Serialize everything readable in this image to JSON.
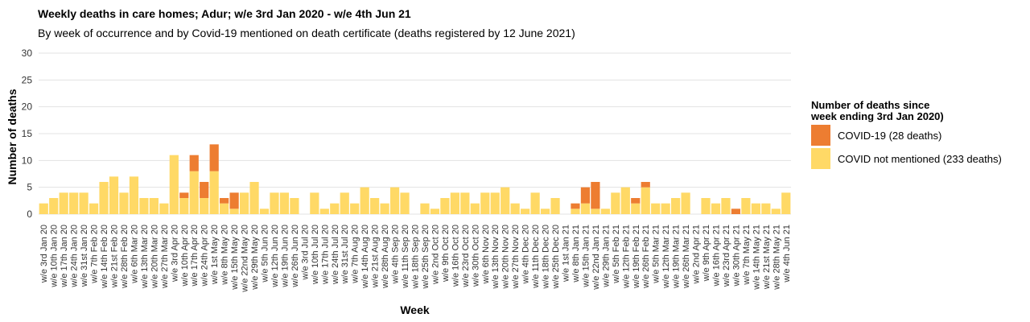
{
  "title": "Weekly deaths in care homes; Adur; w/e 3rd Jan 2020 - w/e 4th Jun 21",
  "subtitle": "By week of occurrence and by Covid-19 mentioned on death certificate (deaths registered by 12 June 2021)",
  "legend": {
    "title_line1": "Number of deaths since",
    "title_line2": "week ending 3rd Jan 2020)",
    "items": [
      {
        "label": "COVID-19 (28 deaths)",
        "color": "#ED7D31"
      },
      {
        "label": "COVID not mentioned (233 deaths)",
        "color": "#FFD966"
      }
    ]
  },
  "chart_data": {
    "type": "bar",
    "stacked": true,
    "xlabel": "Week",
    "ylabel": "Number of deaths",
    "ylim": [
      0,
      30
    ],
    "yticks": [
      0,
      5,
      10,
      15,
      20,
      25,
      30
    ],
    "grid": true,
    "legend_position": "right",
    "categories": [
      "w/e 3rd Jan 20",
      "w/e 10th Jan 20",
      "w/e 17th Jan 20",
      "w/e 24th Jan 20",
      "w/e 31st Jan 20",
      "w/e 7th Feb 20",
      "w/e 14th Feb 20",
      "w/e 21st Feb 20",
      "w/e 28th Feb 20",
      "w/e 6th Mar 20",
      "w/e 13th Mar 20",
      "w/e 20th Mar 20",
      "w/e 27th Mar 20",
      "w/e 3rd Apr 20",
      "w/e 10th Apr 20",
      "w/e 17th Apr 20",
      "w/e 24th Apr 20",
      "w/e 1st May 20",
      "w/e 8th May 20",
      "w/e 15th May 20",
      "w/e 22nd May 20",
      "w/e 29th May 20",
      "w/e 5th Jun 20",
      "w/e 12th Jun 20",
      "w/e 19th Jun 20",
      "w/e 26th Jun 20",
      "w/e 3rd Jul 20",
      "w/e 10th Jul 20",
      "w/e 17th Jul 20",
      "w/e 24th Jul 20",
      "w/e 31st Jul 20",
      "w/e 7th Aug 20",
      "w/e 14th Aug 20",
      "w/e 21st Aug 20",
      "w/e 28th Aug 20",
      "w/e 4th Sep 20",
      "w/e 11th Sep 20",
      "w/e 18th Sep 20",
      "w/e 25th Sep 20",
      "w/e 2nd Oct 20",
      "w/e 9th Oct 20",
      "w/e 16th Oct 20",
      "w/e 23rd Oct 20",
      "w/e 30th Oct 20",
      "w/e 6th Nov 20",
      "w/e 13th Nov 20",
      "w/e 20th Nov 20",
      "w/e 27th Nov 20",
      "w/e 4th Dec 20",
      "w/e 11th Dec 20",
      "w/e 18th Dec 20",
      "w/e 25th Dec 20",
      "w/e 1st Jan 21",
      "w/e 8th Jan 21",
      "w/e 15th Jan 21",
      "w/e 22nd Jan 21",
      "w/e 29th Jan 21",
      "w/e 5th Feb 21",
      "w/e 12th Feb 21",
      "w/e 19th Feb 21",
      "w/e 26th Feb 21",
      "w/e 5th Mar 21",
      "w/e 12th Mar 21",
      "w/e 19th Mar 21",
      "w/e 26th Mar 21",
      "w/e 2nd Apr 21",
      "w/e 9th Apr 21",
      "w/e 16th Apr 21",
      "w/e 23rd Apr 21",
      "w/e 30th Apr 21",
      "w/e 7th May 21",
      "w/e 14th May 21",
      "w/e 21st May 21",
      "w/e 28th May 21",
      "w/e 4th Jun 21"
    ],
    "series": [
      {
        "name": "COVID not mentioned (233 deaths)",
        "color": "#FFD966",
        "values": [
          2,
          3,
          4,
          4,
          4,
          2,
          6,
          7,
          4,
          7,
          3,
          3,
          2,
          11,
          3,
          8,
          3,
          8,
          2,
          1,
          4,
          6,
          1,
          4,
          4,
          3,
          0,
          4,
          1,
          2,
          4,
          2,
          5,
          3,
          2,
          5,
          4,
          0,
          2,
          1,
          3,
          4,
          4,
          2,
          4,
          4,
          5,
          2,
          1,
          4,
          1,
          3,
          0,
          1,
          2,
          1,
          1,
          4,
          5,
          2,
          5,
          2,
          2,
          3,
          4,
          0,
          3,
          2,
          3,
          0,
          3,
          2,
          2,
          1,
          4
        ]
      },
      {
        "name": "COVID-19 (28 deaths)",
        "color": "#ED7D31",
        "values": [
          0,
          0,
          0,
          0,
          0,
          0,
          0,
          0,
          0,
          0,
          0,
          0,
          0,
          0,
          1,
          3,
          3,
          5,
          1,
          3,
          0,
          0,
          0,
          0,
          0,
          0,
          0,
          0,
          0,
          0,
          0,
          0,
          0,
          0,
          0,
          0,
          0,
          0,
          0,
          0,
          0,
          0,
          0,
          0,
          0,
          0,
          0,
          0,
          0,
          0,
          0,
          0,
          0,
          1,
          3,
          5,
          0,
          0,
          0,
          1,
          1,
          0,
          0,
          0,
          0,
          0,
          0,
          0,
          0,
          1,
          0,
          0,
          0,
          0,
          0
        ]
      }
    ]
  }
}
